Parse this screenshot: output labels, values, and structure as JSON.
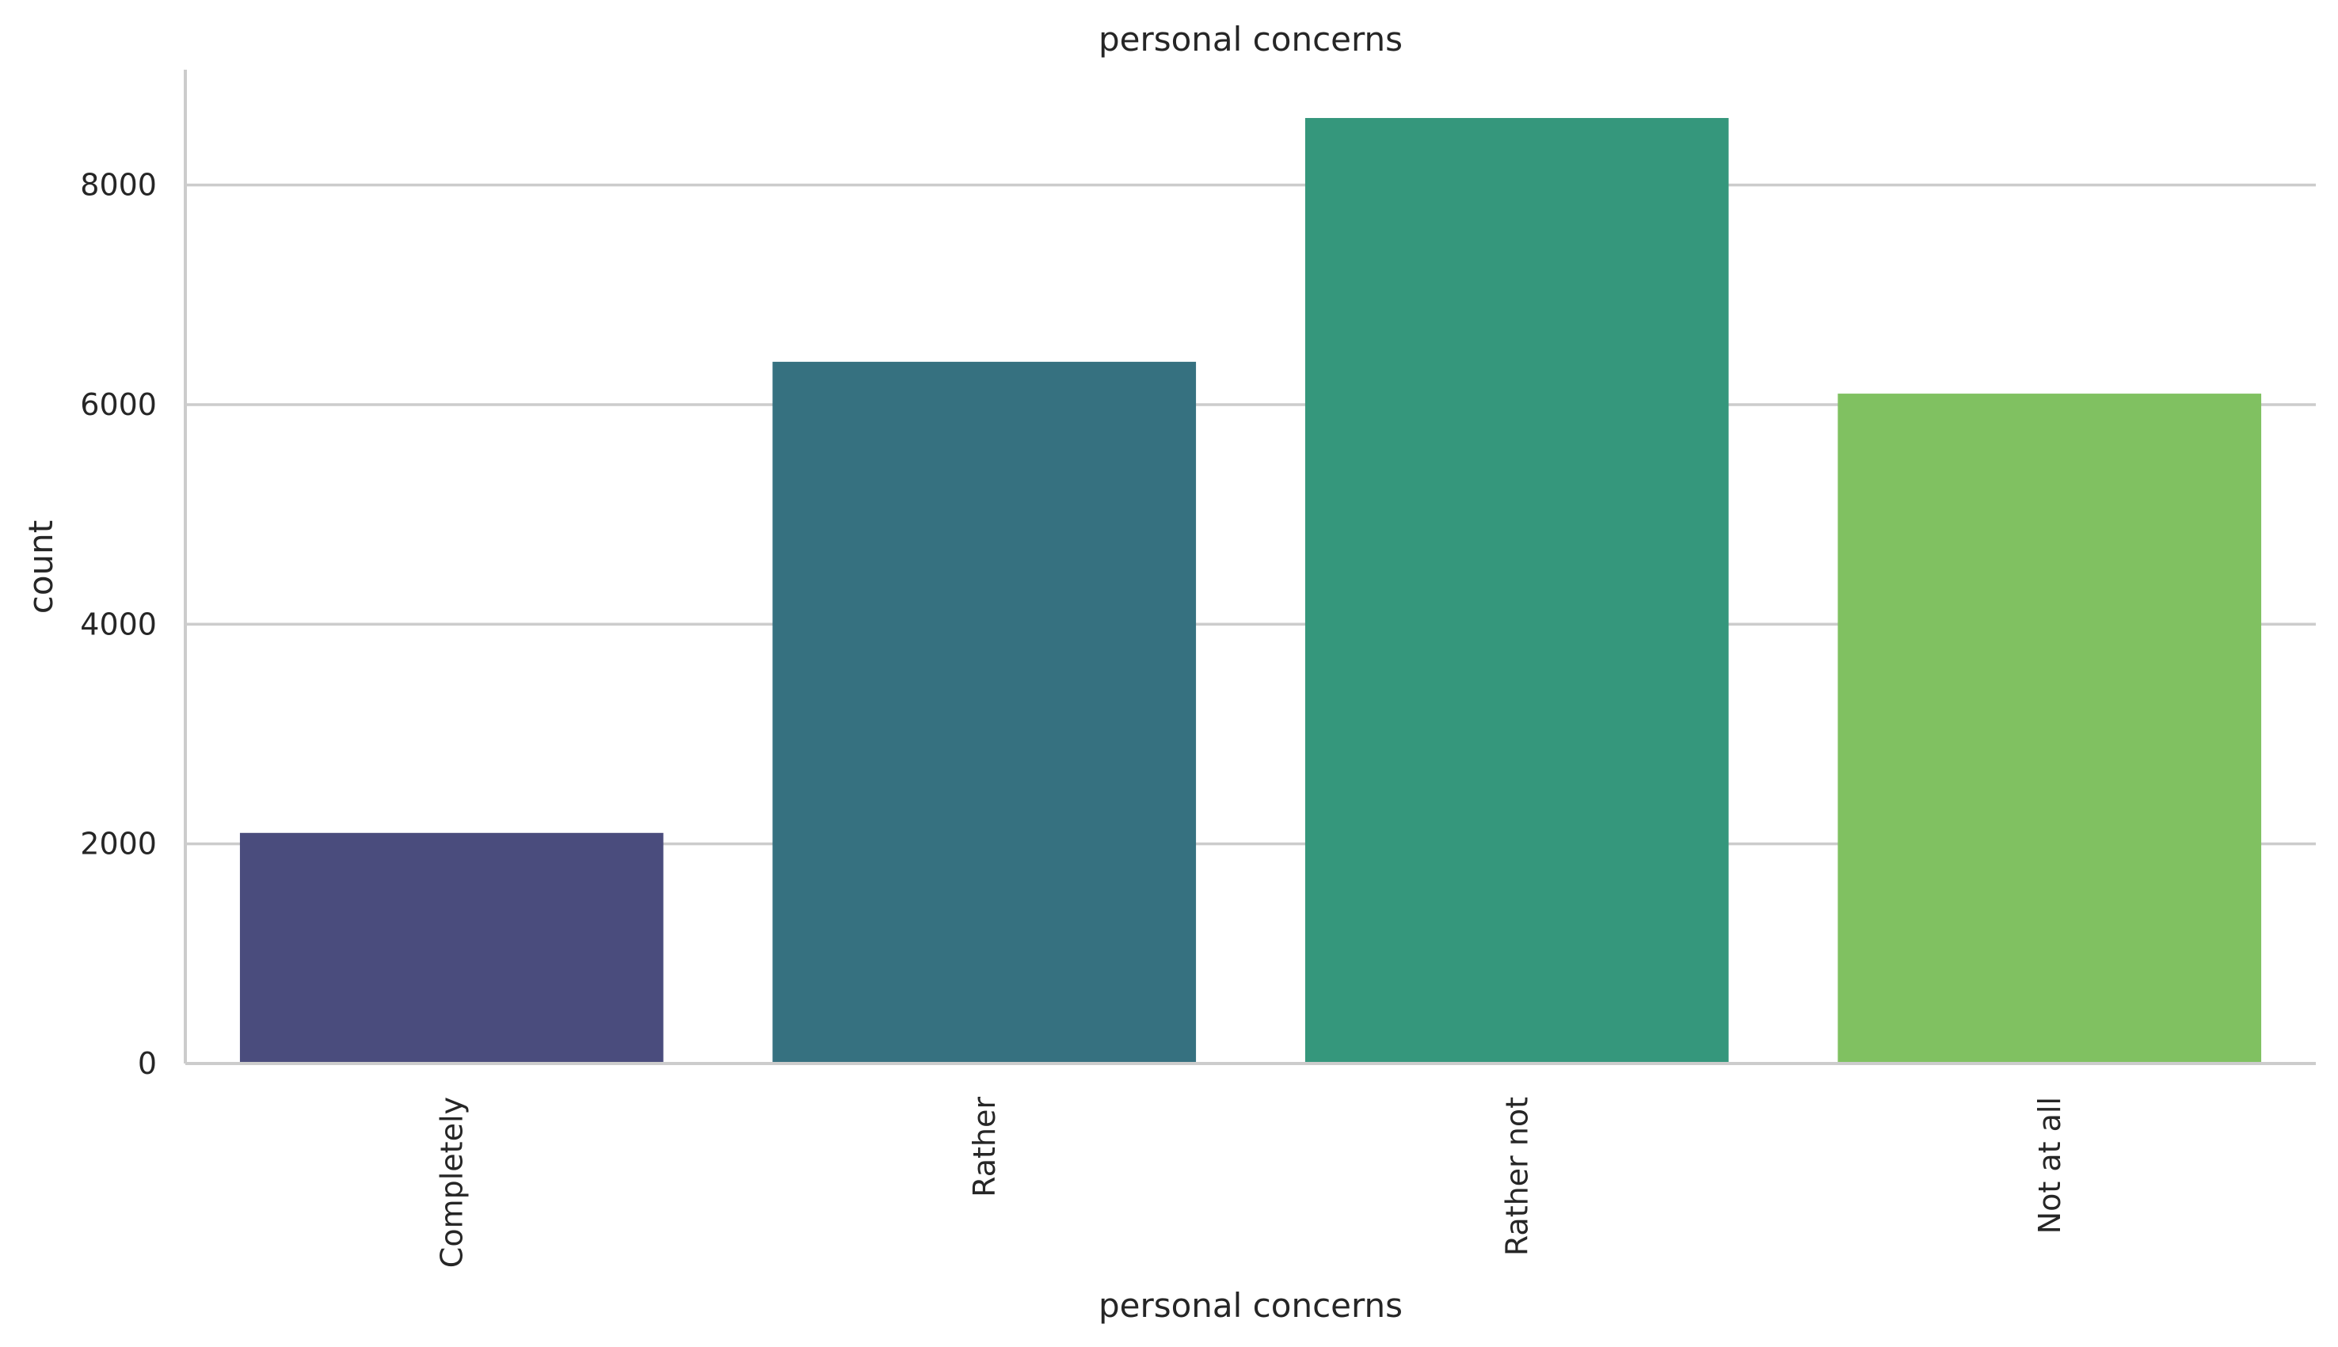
{
  "chart_data": {
    "type": "bar",
    "title": "personal concerns",
    "xlabel": "personal concerns",
    "ylabel": "count",
    "categories": [
      "Completely",
      "Rather",
      "Rather not",
      "Not at all"
    ],
    "values": [
      2100,
      6390,
      8610,
      6100
    ],
    "colors": [
      "#4a4c7d",
      "#367180",
      "#35977c",
      "#80c161"
    ],
    "ylim": [
      0,
      9050
    ],
    "yticks": [
      0,
      2000,
      4000,
      6000,
      8000
    ],
    "ytick_labels": [
      "0",
      "2000",
      "4000",
      "6000",
      "8000"
    ],
    "grid": "horizontal",
    "gridline_color": "#cccccc",
    "tick_label_rotation": "vertical",
    "legend": "none"
  }
}
